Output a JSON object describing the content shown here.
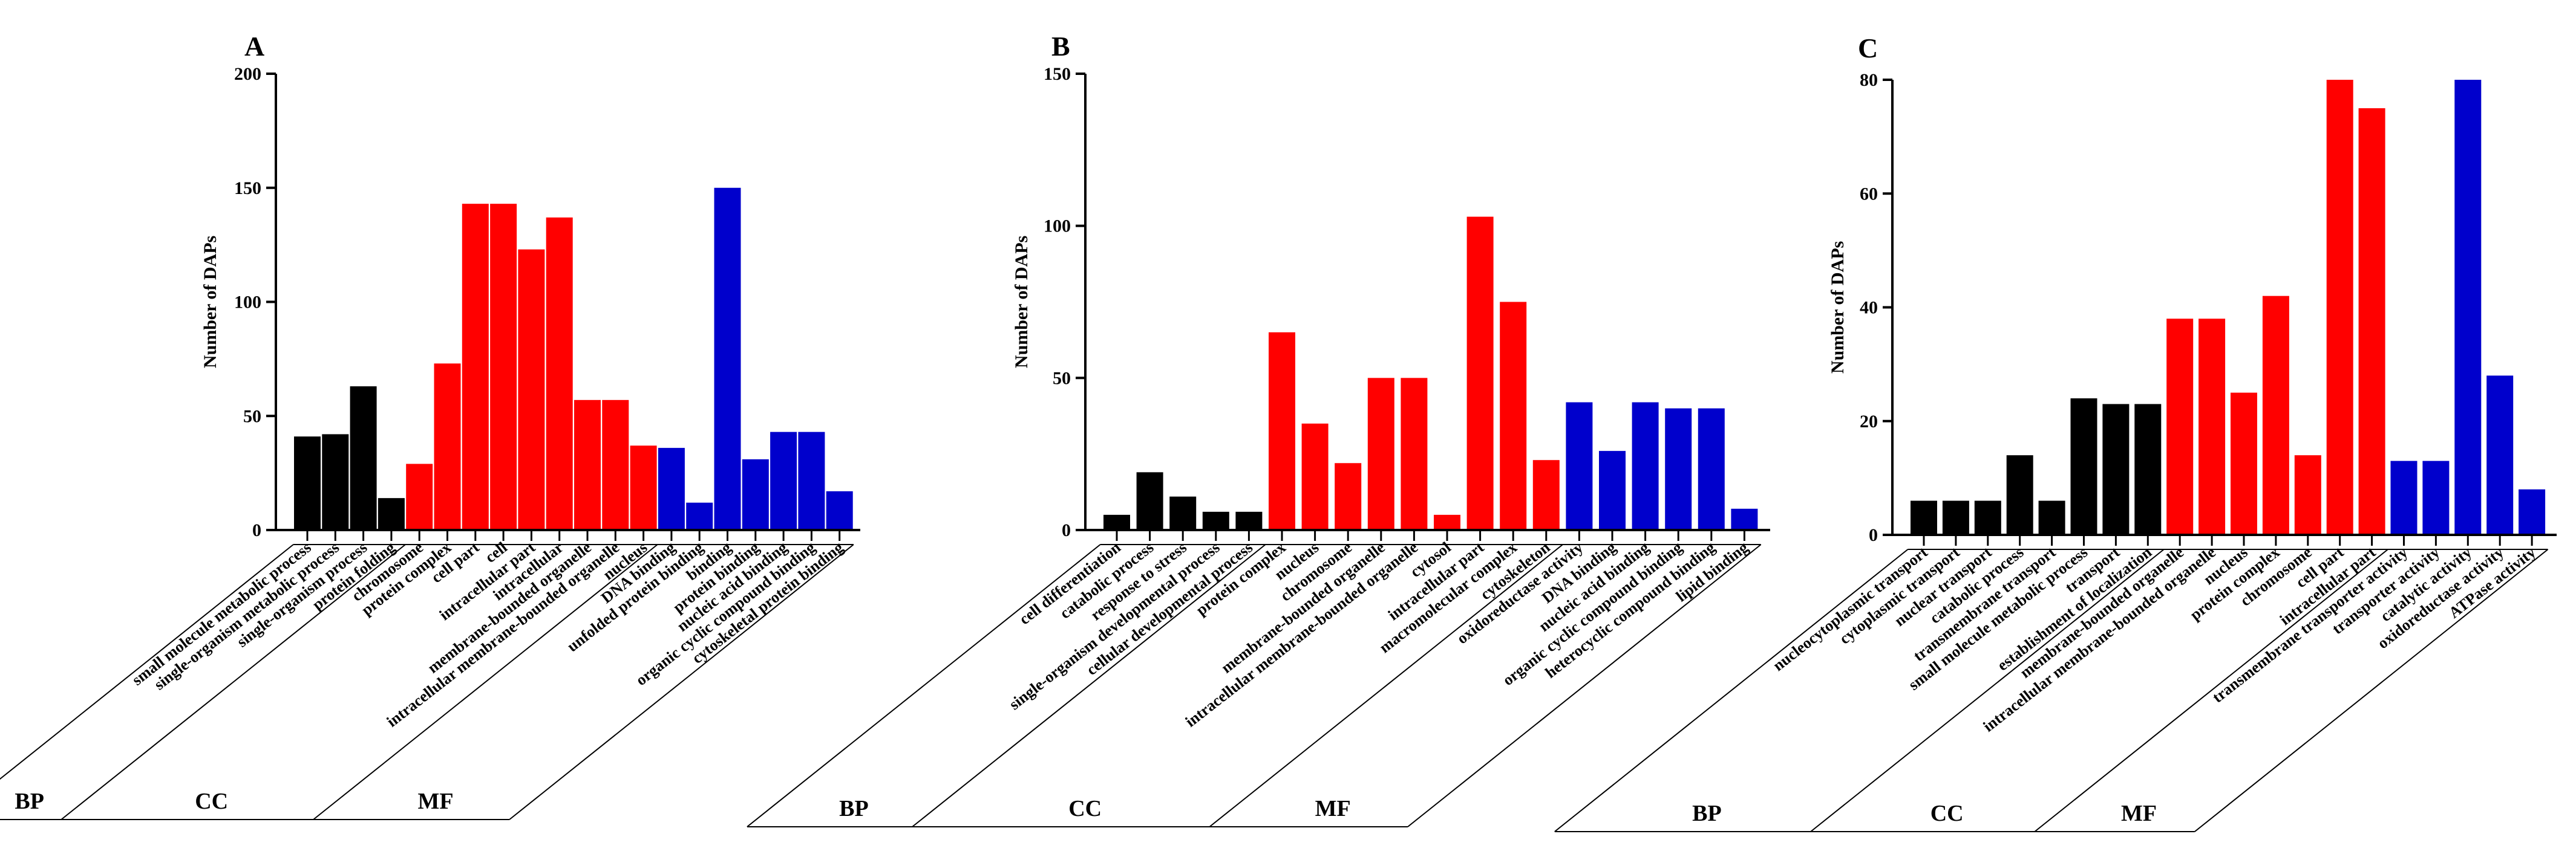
{
  "colors": {
    "BP": "#000000",
    "CC": "#ff0000",
    "MF": "#0000cc"
  },
  "chart_data": [
    {
      "type": "bar",
      "panel": "A",
      "ylabel": "Number of DAPs",
      "ylim": [
        0,
        200
      ],
      "yticks": [
        0,
        50,
        100,
        150,
        200
      ],
      "groups": [
        {
          "name": "BP",
          "categories": [
            "small molecule metabolic process",
            "single-organism metabolic process",
            "single-organism process",
            "protein folding"
          ],
          "values": [
            41,
            42,
            63,
            14
          ]
        },
        {
          "name": "CC",
          "categories": [
            "chromosome",
            "protein complex",
            "cell part",
            "cell",
            "intracellular part",
            "intracellular",
            "membrane-bounded organelle",
            "intracellular membrane-bounded organelle",
            "nucleus"
          ],
          "values": [
            29,
            73,
            143,
            143,
            123,
            137,
            57,
            57,
            37
          ]
        },
        {
          "name": "MF",
          "categories": [
            "DNA binding",
            "unfolded protein binding",
            "binding",
            "protein binding",
            "nucleic acid binding",
            "organic cyclic compound binding",
            "cytoskeletal protein binding"
          ],
          "values": [
            36,
            12,
            150,
            31,
            43,
            43,
            17
          ]
        }
      ]
    },
    {
      "type": "bar",
      "panel": "B",
      "ylabel": "Number of DAPs",
      "ylim": [
        0,
        150
      ],
      "yticks": [
        0,
        50,
        100,
        150
      ],
      "groups": [
        {
          "name": "BP",
          "categories": [
            "cell differentiation",
            "catabolic process",
            "response to stress",
            "single-organism developmental process",
            "cellular developmental process"
          ],
          "values": [
            5,
            19,
            11,
            6,
            6
          ]
        },
        {
          "name": "CC",
          "categories": [
            "protein complex",
            "nucleus",
            "chromosome",
            "membrane-bounded organelle",
            "intracellular membrane-bounded organelle",
            "cytosol",
            "intracellular part",
            "macromolecular complex",
            "cytoskeleton"
          ],
          "values": [
            65,
            35,
            22,
            50,
            50,
            5,
            103,
            75,
            23
          ]
        },
        {
          "name": "MF",
          "categories": [
            "oxidoreductase activity",
            "DNA binding",
            "nucleic acid binding",
            "organic cyclic compound binding",
            "heterocyclic compound binding",
            "lipid binding"
          ],
          "values": [
            42,
            26,
            42,
            40,
            40,
            7
          ]
        }
      ]
    },
    {
      "type": "bar",
      "panel": "C",
      "ylabel": "Number of DAPs",
      "ylim": [
        0,
        80
      ],
      "yticks": [
        0,
        20,
        40,
        60,
        80
      ],
      "groups": [
        {
          "name": "BP",
          "categories": [
            "nucleocytoplasmic transport",
            "cytoplasmic transport",
            "nuclear transport",
            "catabolic process",
            "transmembrane transport",
            "small molecule metabolic process",
            "transport",
            "establishment of localization"
          ],
          "values": [
            6,
            6,
            6,
            14,
            6,
            24,
            23,
            23
          ]
        },
        {
          "name": "CC",
          "categories": [
            "membrane-bounded organelle",
            "intracellular membrane-bounded organelle",
            "nucleus",
            "protein complex",
            "chromosome",
            "cell part",
            "intracellular part"
          ],
          "values": [
            38,
            38,
            25,
            42,
            14,
            80,
            75
          ]
        },
        {
          "name": "MF",
          "categories": [
            "transmembrane transporter activity",
            "transporter activity",
            "catalytic activity",
            "oxidoreductase activity",
            "ATPase activity"
          ],
          "values": [
            13,
            13,
            80,
            28,
            8
          ]
        }
      ]
    }
  ]
}
